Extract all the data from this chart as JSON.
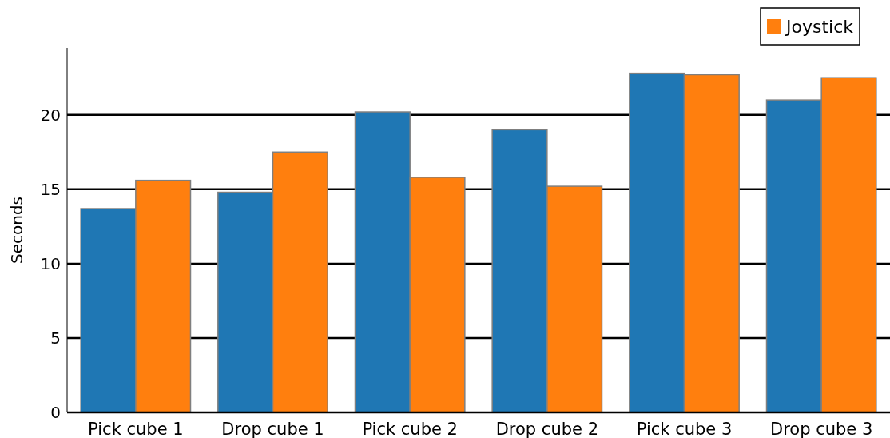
{
  "chart_data": {
    "type": "bar",
    "ylabel": "Seconds",
    "categories": [
      "Pick cube 1",
      "Drop cube 1",
      "Pick cube 2",
      "Drop cube 2",
      "Pick cube 3",
      "Drop cube 3"
    ],
    "series": [
      {
        "color": "#1f77b4",
        "values": [
          13.7,
          14.8,
          20.2,
          19.0,
          22.8,
          21.0
        ]
      },
      {
        "name": "Joystick",
        "color": "#ff7f0e",
        "values": [
          15.6,
          17.5,
          15.8,
          15.2,
          22.7,
          22.5
        ]
      }
    ],
    "ylim": [
      0,
      24.5
    ],
    "yticks": [
      0,
      5,
      10,
      15,
      20
    ],
    "grid": "y",
    "legend": "top right"
  }
}
